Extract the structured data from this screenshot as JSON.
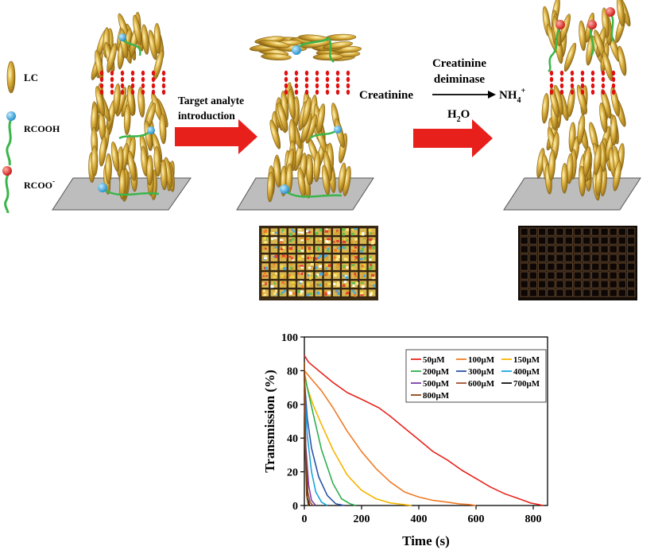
{
  "legend_labels": {
    "lc": "LC",
    "rcooh": "RCOOH",
    "rcoo": "RCOO",
    "rcoo_sup": "-"
  },
  "arrow1": {
    "line1": "Target analyte",
    "line2": "introduction"
  },
  "reaction": {
    "enzyme_line1": "Creatinine",
    "enzyme_line2": "deiminase",
    "substrate": "Creatinine",
    "product": "NH",
    "product_sub": "4",
    "product_sup": "+",
    "water": "H",
    "water_sub": "2",
    "water_tail": "O"
  },
  "colors": {
    "lc_gold": "#d4a63a",
    "lc_dark": "#8a6410",
    "arrow_red": "#e8201c",
    "dot_red": "#e01010",
    "chain_green": "#3bb54a",
    "head_blue": "#38a8e0",
    "head_red": "#e8201c",
    "substrate_gray": "#bdbdbd"
  },
  "chart_data": {
    "type": "line",
    "title": "",
    "xlabel": "Time (s)",
    "ylabel": "Transmission (%)",
    "xlim": [
      0,
      850
    ],
    "ylim": [
      0,
      100
    ],
    "xticks": [
      "0",
      "200",
      "400",
      "600",
      "800"
    ],
    "yticks": [
      "0",
      "20",
      "40",
      "60",
      "80",
      "100"
    ],
    "legend_position": "top-right",
    "legend_columns": 3,
    "series": [
      {
        "name": "50μM",
        "color": "#e8241c",
        "x": [
          0,
          15,
          50,
          100,
          150,
          200,
          260,
          300,
          350,
          400,
          450,
          500,
          550,
          600,
          650,
          700,
          750,
          790,
          820,
          835
        ],
        "y": [
          89,
          85,
          80,
          73,
          67,
          63,
          58,
          53,
          46,
          39,
          32,
          27,
          21,
          16,
          11,
          7,
          4,
          1.5,
          0.5,
          0
        ]
      },
      {
        "name": "100μM",
        "color": "#f07a26",
        "x": [
          0,
          10,
          30,
          60,
          100,
          150,
          200,
          250,
          300,
          350,
          400,
          450,
          500,
          540,
          580,
          600
        ],
        "y": [
          80,
          78,
          74,
          68,
          58,
          44,
          32,
          22,
          14,
          8,
          5,
          3,
          2,
          1,
          0.5,
          0
        ]
      },
      {
        "name": "150μM",
        "color": "#f7b500",
        "x": [
          0,
          10,
          30,
          60,
          100,
          150,
          200,
          250,
          300,
          350,
          375
        ],
        "y": [
          80,
          70,
          60,
          48,
          33,
          18,
          9,
          4,
          1.5,
          0.5,
          0
        ]
      },
      {
        "name": "200μM",
        "color": "#2eaf4f",
        "x": [
          0,
          10,
          30,
          60,
          100,
          130,
          160,
          180
        ],
        "y": [
          78,
          70,
          55,
          33,
          13,
          4,
          1,
          0
        ]
      },
      {
        "name": "300μM",
        "color": "#2a55a8",
        "x": [
          0,
          10,
          25,
          50,
          80,
          110,
          140
        ],
        "y": [
          75,
          52,
          34,
          17,
          6,
          1,
          0
        ]
      },
      {
        "name": "400μM",
        "color": "#1aa6e0",
        "x": [
          0,
          10,
          25,
          40,
          60,
          80
        ],
        "y": [
          70,
          42,
          20,
          8,
          2,
          0
        ]
      },
      {
        "name": "500μM",
        "color": "#7a3fa6",
        "x": [
          0,
          5,
          15,
          25,
          40
        ],
        "y": [
          65,
          35,
          12,
          3,
          0
        ]
      },
      {
        "name": "600μM",
        "color": "#a0522d",
        "x": [
          0,
          5,
          12,
          20,
          30
        ],
        "y": [
          70,
          30,
          8,
          2,
          0
        ]
      },
      {
        "name": "700μM",
        "color": "#111111",
        "x": [
          0,
          4,
          10,
          18
        ],
        "y": [
          80,
          30,
          5,
          0
        ]
      },
      {
        "name": "800μM",
        "color": "#8b4513",
        "x": [
          0,
          3,
          8,
          14
        ],
        "y": [
          85,
          35,
          6,
          0
        ]
      }
    ]
  }
}
